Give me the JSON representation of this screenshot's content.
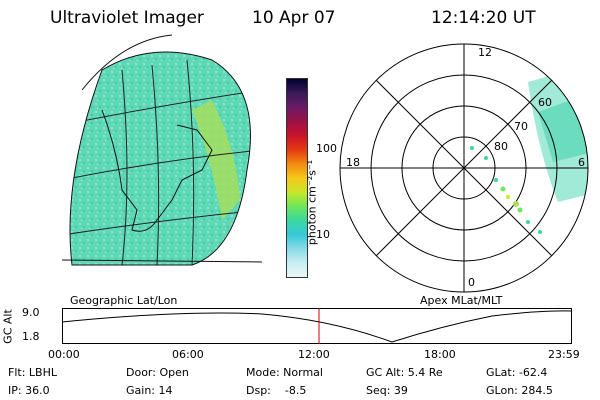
{
  "header": {
    "instrument": "Ultraviolet Imager",
    "date": "10 Apr 07",
    "time": "12:14:20 UT"
  },
  "colorbar": {
    "unit_label": "photon cm⁻²s⁻¹",
    "ticks": [
      "100",
      "10"
    ],
    "colors": [
      "#000033",
      "#3a1a55",
      "#6b1a66",
      "#9a1245",
      "#c8142a",
      "#e43a12",
      "#f28a10",
      "#f5c81a",
      "#c8e62a",
      "#6ee65a",
      "#3ad7a0",
      "#35c8d8",
      "#8adbe6",
      "#c8eef2",
      "#eaf7f8"
    ]
  },
  "geo_panel": {
    "label": "Geographic Lat/Lon"
  },
  "polar_panel": {
    "label": "Apex MLat/MLT",
    "mlt_labels": {
      "top": "12",
      "left": "18",
      "right": "6",
      "bottom": "0"
    },
    "lat_labels": [
      "80",
      "70",
      "60"
    ]
  },
  "altitude_plot": {
    "ylabel": "GC Alt",
    "ytick_top": "9.0",
    "ytick_bottom": "1.8",
    "xticks": [
      "00:00",
      "06:00",
      "12:00",
      "18:00",
      "23:59"
    ],
    "marker_color": "#cc0000"
  },
  "status": {
    "filter": "Flt: LBHL",
    "ip": "IP: 36.0",
    "door": "Door: Open",
    "gain": "Gain: 14",
    "mode": "Mode: Normal",
    "dsp": "Dsp:    -8.5",
    "gc_alt": "GC Alt: 5.4 Re",
    "seq": "Seq: 39",
    "glat": "GLat: -62.4",
    "glon": "GLon: 284.5"
  }
}
